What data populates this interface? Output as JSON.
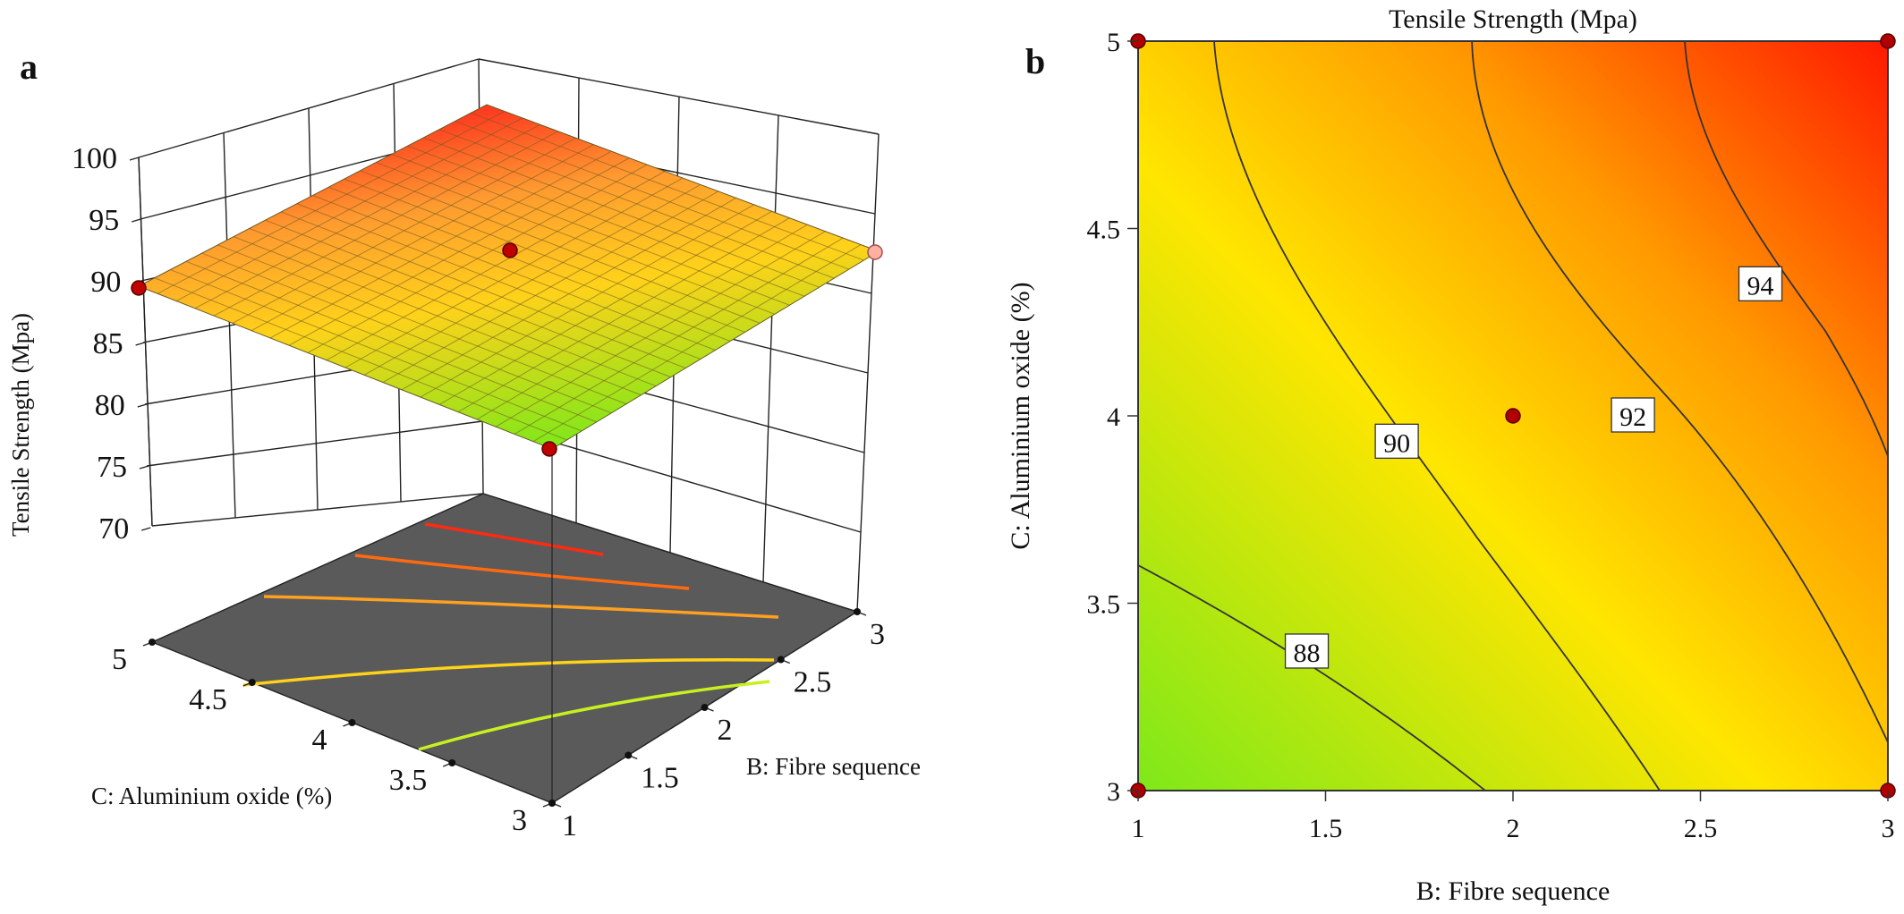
{
  "panel_a_label": "a",
  "panel_b_label": "b",
  "chart_data": [
    {
      "type": "surface",
      "panel": "a",
      "zlabel": "Tensile Strength (Mpa)",
      "xlabel": "C: Aluminium oxide (%)",
      "ylabel": "B: Fibre sequence",
      "zticks": [
        "100",
        "95",
        "90",
        "85",
        "80",
        "75",
        "70"
      ],
      "cticks": [
        "5",
        "4.5",
        "4",
        "3.5",
        "3"
      ],
      "bticks": [
        "1",
        "1.5",
        "2",
        "2.5",
        "3"
      ],
      "zlim": [
        70,
        100
      ],
      "c_range": [
        3,
        5
      ],
      "b_range": [
        1,
        3
      ],
      "surface_corners": [
        {
          "B": 1,
          "C": 5,
          "value": 88.0
        },
        {
          "B": 1,
          "C": 3,
          "value": 86.0
        },
        {
          "B": 3,
          "C": 3,
          "value": 93.2
        },
        {
          "B": 3,
          "C": 5,
          "value": 96.3
        }
      ],
      "design_points": [
        {
          "B": 1,
          "C": 5,
          "value": 88.0
        },
        {
          "B": 2,
          "C": 4,
          "value": 91.0
        },
        {
          "B": 1,
          "C": 3,
          "value": 85.9
        },
        {
          "B": 3,
          "C": 3,
          "value": 93.3
        }
      ],
      "colors": {
        "low": "#7ee81a",
        "mid": "#ffd21a",
        "high": "#ff1a00",
        "floor": "#5a5a5a"
      }
    },
    {
      "type": "contour",
      "panel": "b",
      "title": "Tensile Strength (Mpa)",
      "xlabel": "B: Fibre sequence",
      "ylabel": "C: Aluminium oxide (%)",
      "xlim": [
        1,
        3
      ],
      "ylim": [
        3,
        5
      ],
      "xticks": [
        "1",
        "1.5",
        "2",
        "2.5",
        "3"
      ],
      "yticks": [
        "3",
        "3.5",
        "4",
        "4.5",
        "5"
      ],
      "contour_levels": [
        88,
        90,
        92,
        94
      ],
      "contour_labels": [
        {
          "text": "88",
          "B": 1.45,
          "C": 3.37
        },
        {
          "text": "90",
          "B": 1.69,
          "C": 3.93
        },
        {
          "text": "92",
          "B": 2.32,
          "C": 4.0
        },
        {
          "text": "94",
          "B": 2.66,
          "C": 4.35
        }
      ],
      "design_points": [
        {
          "B": 1,
          "C": 5
        },
        {
          "B": 3,
          "C": 5
        },
        {
          "B": 2,
          "C": 4
        },
        {
          "B": 1,
          "C": 3
        },
        {
          "B": 3,
          "C": 3
        }
      ],
      "colors": {
        "low": "#7ee81a",
        "mid": "#ffe600",
        "high": "#ff1a00",
        "point": "#b00000"
      }
    }
  ]
}
